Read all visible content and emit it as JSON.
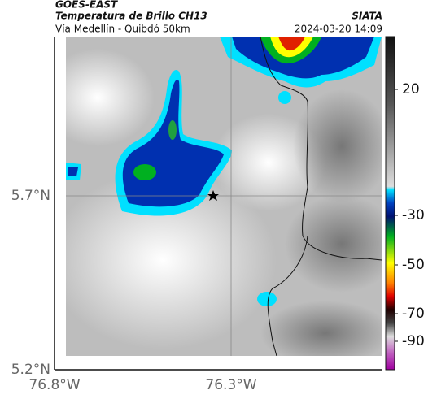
{
  "header": {
    "satellite": "GOES-EAST",
    "product": "Temperatura de Brillo CH13",
    "region": "Vía Medellín - Quibdó 50km",
    "source": "SIATA",
    "datetime": "2024-03-20 14:09"
  },
  "map": {
    "lat_ticks": [
      "5.7°N",
      "5.2°N"
    ],
    "lon_ticks": [
      "76.8°W",
      "76.3°W"
    ]
  },
  "colorbar": {
    "ticks": [
      20,
      -30,
      -50,
      -70,
      -90
    ]
  }
}
